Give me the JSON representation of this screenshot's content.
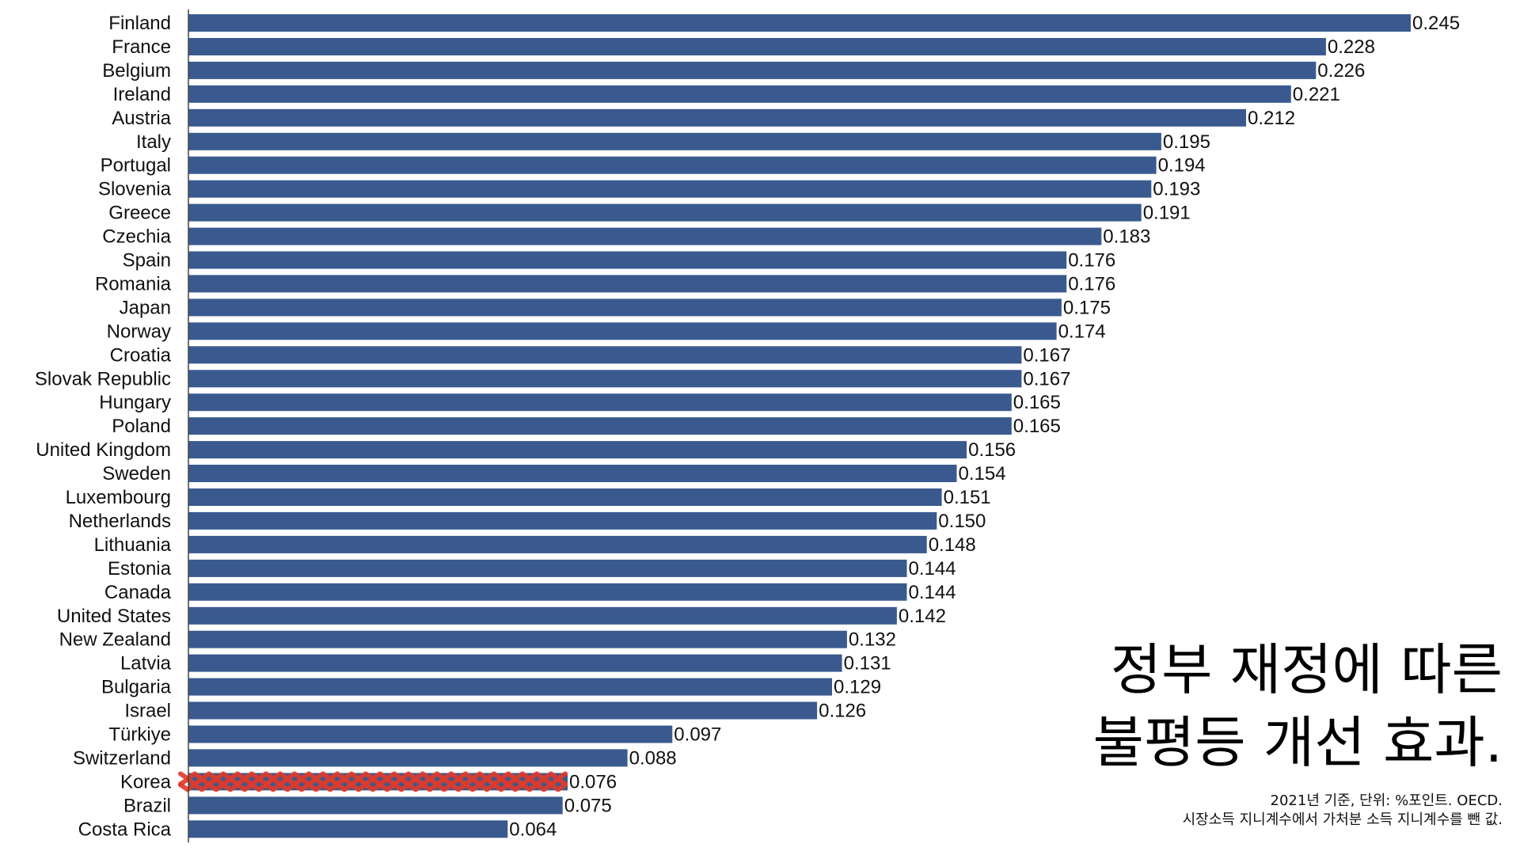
{
  "colors": {
    "bar": "#3a5a8f",
    "highlight": "#e03a2a",
    "axis": "#444444",
    "text": "#111111"
  },
  "headline": {
    "line1": "정부 재정에 따른",
    "line2": "불평등 개선 효과."
  },
  "footnote": {
    "line1": "2021년 기준, 단위: %포인트. OECD.",
    "line2": "시장소득 지니계수에서 가처분 소득 지니계수를 뺀 값."
  },
  "chart_data": {
    "type": "bar",
    "orientation": "horizontal",
    "title": "",
    "xlabel": "",
    "ylabel": "",
    "xlim": [
      0,
      0.245
    ],
    "grid": false,
    "legend": "none",
    "highlight_category": "Korea",
    "categories": [
      "Finland",
      "France",
      "Belgium",
      "Ireland",
      "Austria",
      "Italy",
      "Portugal",
      "Slovenia",
      "Greece",
      "Czechia",
      "Spain",
      "Romania",
      "Japan",
      "Norway",
      "Croatia",
      "Slovak Republic",
      "Hungary",
      "Poland",
      "United Kingdom",
      "Sweden",
      "Luxembourg",
      "Netherlands",
      "Lithuania",
      "Estonia",
      "Canada",
      "United States",
      "New Zealand",
      "Latvia",
      "Bulgaria",
      "Israel",
      "Türkiye",
      "Switzerland",
      "Korea",
      "Brazil",
      "Costa Rica"
    ],
    "values": [
      0.245,
      0.228,
      0.226,
      0.221,
      0.212,
      0.195,
      0.194,
      0.193,
      0.191,
      0.183,
      0.176,
      0.176,
      0.175,
      0.174,
      0.167,
      0.167,
      0.165,
      0.165,
      0.156,
      0.154,
      0.151,
      0.15,
      0.148,
      0.144,
      0.144,
      0.142,
      0.132,
      0.131,
      0.129,
      0.126,
      0.097,
      0.088,
      0.076,
      0.075,
      0.064
    ],
    "value_labels": [
      "0.245",
      "0.228",
      "0.226",
      "0.221",
      "0.212",
      "0.195",
      "0.194",
      "0.193",
      "0.191",
      "0.183",
      "0.176",
      "0.176",
      "0.175",
      "0.174",
      "0.167",
      "0.167",
      "0.165",
      "0.165",
      "0.156",
      "0.154",
      "0.151",
      "0.150",
      "0.148",
      "0.144",
      "0.144",
      "0.142",
      "0.132",
      "0.131",
      "0.129",
      "0.126",
      "0.097",
      "0.088",
      "0.076",
      "0.075",
      "0.064"
    ]
  }
}
